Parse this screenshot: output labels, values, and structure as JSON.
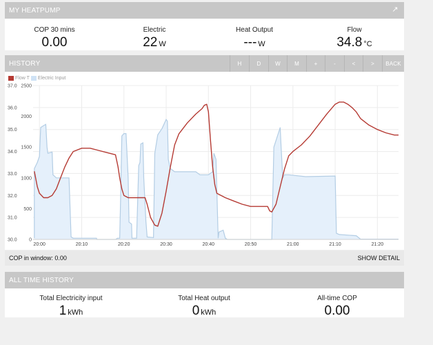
{
  "heatpump": {
    "title": "MY HEATPUMP",
    "expand_icon": "expand-arrow-icon",
    "stats": [
      {
        "label": "COP 30 mins",
        "value": "0.00",
        "unit": ""
      },
      {
        "label": "Electric",
        "value": "22",
        "unit": "W"
      },
      {
        "label": "Heat Output",
        "value": "---",
        "unit": "W"
      },
      {
        "label": "Flow",
        "value": "34.8",
        "unit": "°C"
      }
    ]
  },
  "history": {
    "title": "HISTORY",
    "buttons": [
      "H",
      "D",
      "W",
      "M",
      "+",
      "-",
      "<",
      ">",
      "BACK"
    ],
    "cop_window_label": "COP in window: 0.00",
    "show_detail_label": "SHOW DETAIL"
  },
  "all_time": {
    "title": "ALL TIME HISTORY",
    "stats": [
      {
        "label": "Total Electricity input",
        "value": "1",
        "unit": "kWh"
      },
      {
        "label": "Total Heat output",
        "value": "0",
        "unit": "kWh"
      },
      {
        "label": "All-time COP",
        "value": "0.00",
        "unit": ""
      }
    ]
  },
  "colors": {
    "flow_line": "#b53a33",
    "electric_fill": "#e5f0fb",
    "electric_line": "#b3cde4",
    "header_bg": "#c7c7c7"
  },
  "chart_data": {
    "type": "line",
    "legend": [
      "Flow T",
      "Electric Input"
    ],
    "x_tick_labels": [
      "20:00",
      "20:10",
      "20:20",
      "20:30",
      "20:40",
      "20:50",
      "21:00",
      "21:10",
      "21:20"
    ],
    "x_ticks_min": [
      0,
      10,
      20,
      30,
      40,
      50,
      60,
      70,
      80
    ],
    "x_range_min": [
      -1.5,
      85
    ],
    "y_left": {
      "ticks": [
        "37.0",
        "36.0",
        "35.0",
        "34.0",
        "33.0",
        "32.0",
        "31.0",
        "30.0"
      ],
      "range": [
        30,
        37
      ]
    },
    "y_right": {
      "ticks": [
        "2500",
        "2000",
        "1500",
        "1000",
        "500",
        "0"
      ],
      "range": [
        0,
        2500
      ]
    },
    "series": [
      {
        "name": "Flow T",
        "axis": "left",
        "style": "line",
        "points": [
          [
            -1.2,
            33.1
          ],
          [
            -0.5,
            32.4
          ],
          [
            0,
            32.1
          ],
          [
            1,
            31.9
          ],
          [
            2,
            31.9
          ],
          [
            3,
            32.0
          ],
          [
            4,
            32.3
          ],
          [
            5,
            32.8
          ],
          [
            6,
            33.3
          ],
          [
            7,
            33.7
          ],
          [
            8,
            34.0
          ],
          [
            10,
            34.15
          ],
          [
            12,
            34.15
          ],
          [
            14,
            34.05
          ],
          [
            16,
            33.95
          ],
          [
            18,
            33.85
          ],
          [
            18.6,
            33.3
          ],
          [
            19,
            32.8
          ],
          [
            19.5,
            32.3
          ],
          [
            20,
            32.0
          ],
          [
            21,
            31.9
          ],
          [
            25,
            31.9
          ],
          [
            25.5,
            31.6
          ],
          [
            26.3,
            31.0
          ],
          [
            27.3,
            30.65
          ],
          [
            28,
            30.6
          ],
          [
            29,
            31.2
          ],
          [
            30,
            32.2
          ],
          [
            31,
            33.3
          ],
          [
            32,
            34.3
          ],
          [
            33,
            34.8
          ],
          [
            35,
            35.3
          ],
          [
            37,
            35.7
          ],
          [
            38.5,
            35.95
          ],
          [
            39,
            36.1
          ],
          [
            39.6,
            36.15
          ],
          [
            40,
            35.8
          ],
          [
            40.5,
            34.5
          ],
          [
            41,
            33.3
          ],
          [
            41.5,
            32.5
          ],
          [
            42,
            32.1
          ],
          [
            44,
            31.9
          ],
          [
            46,
            31.75
          ],
          [
            48,
            31.6
          ],
          [
            50,
            31.5
          ],
          [
            52,
            31.5
          ],
          [
            54,
            31.5
          ],
          [
            54.5,
            31.3
          ],
          [
            55,
            31.25
          ],
          [
            56,
            31.6
          ],
          [
            57,
            32.4
          ],
          [
            58,
            33.2
          ],
          [
            59,
            33.8
          ],
          [
            60,
            34.0
          ],
          [
            62,
            34.3
          ],
          [
            64,
            34.7
          ],
          [
            66,
            35.2
          ],
          [
            68,
            35.7
          ],
          [
            70,
            36.15
          ],
          [
            71,
            36.25
          ],
          [
            72,
            36.25
          ],
          [
            73,
            36.15
          ],
          [
            74,
            36.0
          ],
          [
            75,
            35.8
          ],
          [
            76,
            35.5
          ],
          [
            78,
            35.2
          ],
          [
            80,
            35.0
          ],
          [
            82,
            34.85
          ],
          [
            84,
            34.75
          ],
          [
            85,
            34.75
          ]
        ]
      },
      {
        "name": "Electric Input",
        "axis": "right",
        "style": "area",
        "points": [
          [
            -1.2,
            20
          ],
          [
            -1.2,
            1150
          ],
          [
            -0.5,
            1250
          ],
          [
            0,
            1350
          ],
          [
            0.3,
            1820
          ],
          [
            1,
            1850
          ],
          [
            1.5,
            1870
          ],
          [
            1.8,
            1500
          ],
          [
            2,
            1400
          ],
          [
            3,
            1420
          ],
          [
            3.2,
            1050
          ],
          [
            4,
            1000
          ],
          [
            7,
            1000
          ],
          [
            7.5,
            40
          ],
          [
            8,
            20
          ],
          [
            13.5,
            20
          ],
          [
            13.6,
            0
          ],
          [
            18,
            0
          ],
          [
            18.5,
            20
          ],
          [
            19,
            20
          ],
          [
            19.2,
            600
          ],
          [
            19.5,
            1680
          ],
          [
            20,
            1720
          ],
          [
            20.5,
            1720
          ],
          [
            21,
            1000
          ],
          [
            21.2,
            280
          ],
          [
            21.8,
            250
          ],
          [
            21.9,
            20
          ],
          [
            23,
            20
          ],
          [
            23.5,
            1200
          ],
          [
            23.8,
            1250
          ],
          [
            24,
            1550
          ],
          [
            24.5,
            1570
          ],
          [
            24.7,
            1000
          ],
          [
            25.2,
            300
          ],
          [
            25.5,
            40
          ],
          [
            27,
            30
          ],
          [
            27.3,
            1400
          ],
          [
            28,
            1700
          ],
          [
            29,
            1800
          ],
          [
            30,
            1950
          ],
          [
            30.3,
            1920
          ],
          [
            30.5,
            1300
          ],
          [
            31,
            1150
          ],
          [
            32,
            1100
          ],
          [
            33,
            1100
          ],
          [
            37,
            1100
          ],
          [
            38,
            1050
          ],
          [
            40,
            1050
          ],
          [
            41,
            1100
          ],
          [
            41.3,
            1400
          ],
          [
            41.8,
            1300
          ],
          [
            42.3,
            20
          ],
          [
            42.5,
            120
          ],
          [
            43.5,
            150
          ],
          [
            44,
            20
          ],
          [
            44.5,
            0
          ],
          [
            55,
            0
          ],
          [
            55.5,
            1500
          ],
          [
            57,
            1820
          ],
          [
            57.2,
            1500
          ],
          [
            57.6,
            1000
          ],
          [
            58,
            1050
          ],
          [
            59,
            1050
          ],
          [
            63,
            1020
          ],
          [
            70,
            1030
          ],
          [
            70.3,
            100
          ],
          [
            71,
            80
          ],
          [
            75,
            60
          ],
          [
            76,
            5
          ],
          [
            85,
            5
          ]
        ]
      }
    ]
  }
}
